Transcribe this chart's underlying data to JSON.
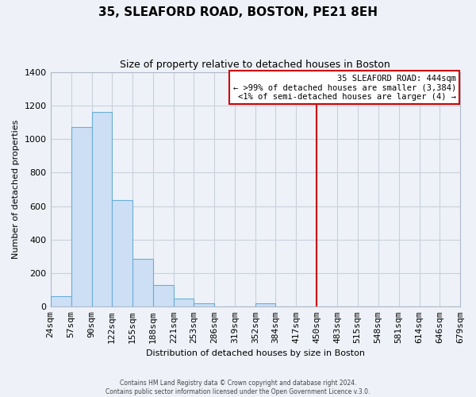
{
  "title": "35, SLEAFORD ROAD, BOSTON, PE21 8EH",
  "subtitle": "Size of property relative to detached houses in Boston",
  "xlabel": "Distribution of detached houses by size in Boston",
  "ylabel": "Number of detached properties",
  "bin_labels": [
    "24sqm",
    "57sqm",
    "90sqm",
    "122sqm",
    "155sqm",
    "188sqm",
    "221sqm",
    "253sqm",
    "286sqm",
    "319sqm",
    "352sqm",
    "384sqm",
    "417sqm",
    "450sqm",
    "483sqm",
    "515sqm",
    "548sqm",
    "581sqm",
    "614sqm",
    "646sqm",
    "679sqm"
  ],
  "bar_values": [
    65,
    1070,
    1160,
    635,
    285,
    130,
    47,
    20,
    0,
    0,
    20,
    0,
    0,
    0,
    0,
    0,
    0,
    0,
    0,
    0
  ],
  "bar_color": "#ccdff5",
  "bar_edge_color": "#6aaed6",
  "vline_x_index": 13,
  "vline_label": "35 SLEAFORD ROAD: 444sqm",
  "annotation_line1": "← >99% of detached houses are smaller (3,384)",
  "annotation_line2": "<1% of semi-detached houses are larger (4) →",
  "vline_color": "#cc0000",
  "annotation_box_edge": "#cc0000",
  "footer1": "Contains HM Land Registry data © Crown copyright and database right 2024.",
  "footer2": "Contains public sector information licensed under the Open Government Licence v.3.0.",
  "ylim": [
    0,
    1400
  ],
  "bin_edges": [
    24,
    57,
    90,
    122,
    155,
    188,
    221,
    253,
    286,
    319,
    352,
    384,
    417,
    450,
    483,
    515,
    548,
    581,
    614,
    646,
    679
  ],
  "background_color": "#eef2f8",
  "grid_color": "#c8d0dc",
  "spine_color": "#b0bac8"
}
